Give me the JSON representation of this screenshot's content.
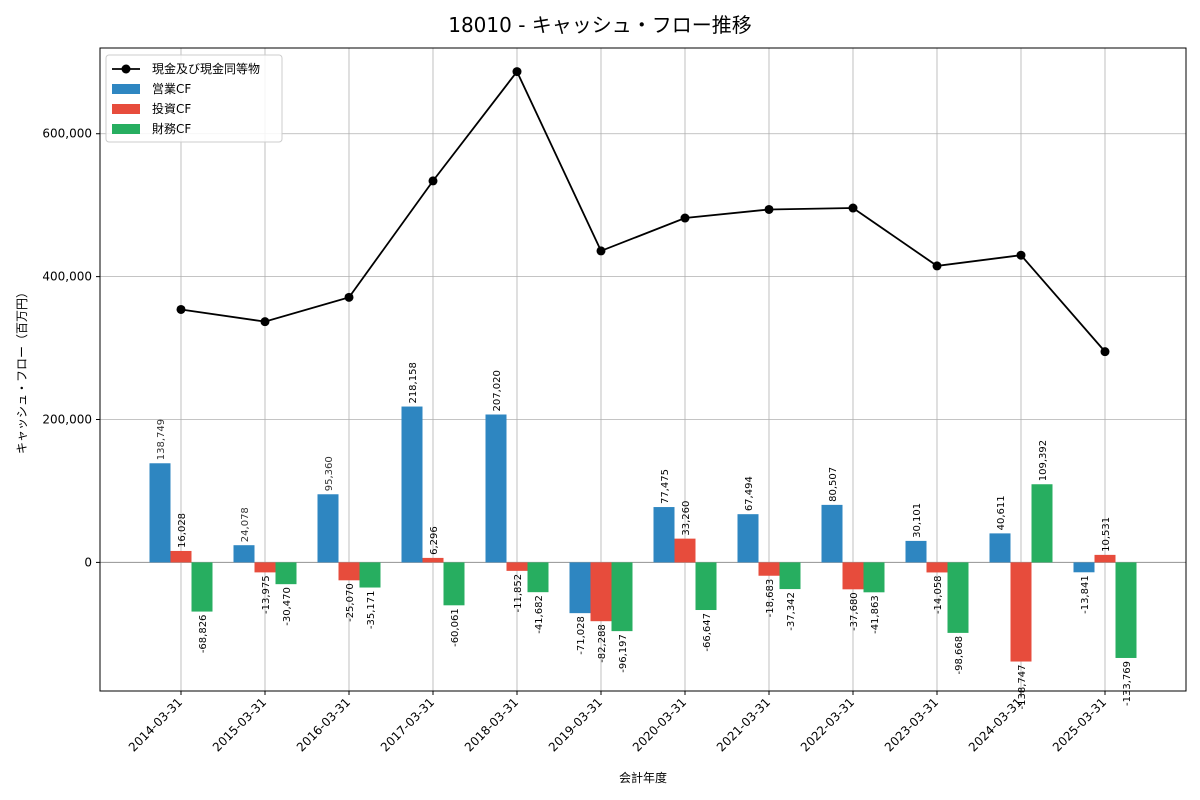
{
  "chart_data": {
    "type": "bar",
    "title": "18010 - キャッシュ・フロー推移",
    "xlabel": "会計年度",
    "ylabel": "キャッシュ・フロー（百万円）",
    "categories": [
      "2014-03-31",
      "2015-03-31",
      "2016-03-31",
      "2017-03-31",
      "2018-03-31",
      "2019-03-31",
      "2020-03-31",
      "2021-03-31",
      "2022-03-31",
      "2023-03-31",
      "2024-03-31",
      "2025-03-31"
    ],
    "ylim": [
      -180000,
      720000
    ],
    "yticks": [
      0,
      200000,
      400000,
      600000
    ],
    "ytick_labels": [
      "0",
      "200,000",
      "400,000",
      "600,000"
    ],
    "grid": true,
    "legend_position": "top-left",
    "series": [
      {
        "name": "現金及び現金同等物",
        "type": "line",
        "color": "#000000",
        "values": [
          354000,
          337000,
          371000,
          534000,
          687000,
          436000,
          482000,
          494000,
          496000,
          415000,
          430000,
          295000
        ]
      },
      {
        "name": "営業CF",
        "type": "bar",
        "color": "#2e86c1",
        "values": [
          138749,
          24078,
          95360,
          218158,
          207020,
          -71028,
          77475,
          67494,
          80507,
          30101,
          40611,
          -13841
        ],
        "labels": [
          "138,749",
          "24,078",
          "95,360",
          "218,158",
          "207,020",
          "-71,028",
          "77,475",
          "67,494",
          "80,507",
          "30,101",
          "40,611",
          "-13,841"
        ]
      },
      {
        "name": "投資CF",
        "type": "bar",
        "color": "#e74c3c",
        "values": [
          16028,
          -13975,
          -25070,
          6296,
          -11852,
          -82288,
          33260,
          -18683,
          -37680,
          -14058,
          -138747,
          10531
        ],
        "labels": [
          "16,028",
          "-13,975",
          "-25,070",
          "6,296",
          "-11,852",
          "-82,288",
          "33,260",
          "-18,683",
          "-37,680",
          "-14,058",
          "-138,747",
          "10,531"
        ]
      },
      {
        "name": "財務CF",
        "type": "bar",
        "color": "#27ae60",
        "values": [
          -68826,
          -30470,
          -35171,
          -60061,
          -41682,
          -96197,
          -66647,
          -37342,
          -41863,
          -98668,
          109392,
          -133769
        ],
        "labels": [
          "-68,826",
          "-30,470",
          "-35,171",
          "-60,061",
          "-41,682",
          "-96,197",
          "-66,647",
          "-37,342",
          "-41,863",
          "-98,668",
          "109,392",
          "-133,769"
        ]
      }
    ]
  }
}
